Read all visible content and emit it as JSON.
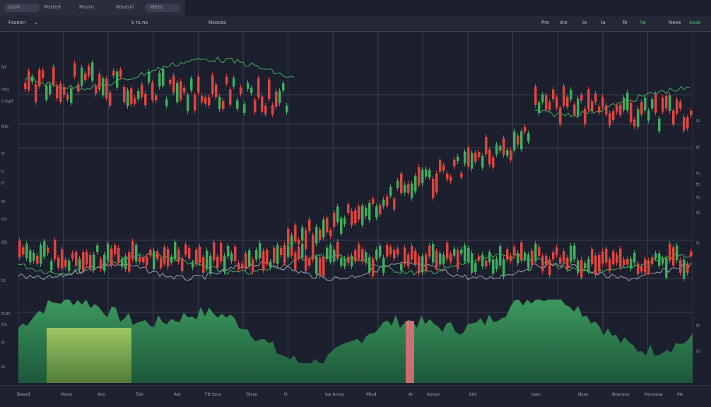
{
  "topbar": {
    "tabs": [
      "Lash",
      "Mstted",
      "Msato",
      "Wostoil",
      "Ideto"
    ]
  },
  "header": {
    "symbol": "Fssoon",
    "indicator": "k rs.ns",
    "title": "Nsooss",
    "controls": [
      "Pro",
      "ste",
      "Io",
      "Ia",
      "To",
      "Ae",
      "Nese"
    ],
    "status": "Aoss"
  },
  "left_axis": [
    "Nt",
    "Ftts",
    "Caspt",
    "Nts",
    "tt",
    "h",
    "tt",
    "ts",
    "tts",
    "Ett",
    "ts",
    "ttstt",
    "tts",
    "tt",
    "ts"
  ],
  "right_axis": [
    "ts",
    "tt",
    "ts",
    "tt",
    "ts",
    "ts",
    "tt",
    "tt",
    "ts"
  ],
  "footer": [
    "Besed",
    "Moon",
    "Aso",
    "Tsin",
    "Ast",
    "Ftt tocs",
    "Olsso",
    "tt",
    "tss Arcso",
    "Mtsd",
    "Ar",
    "Aonso",
    "tstt",
    "taso",
    "Nsos",
    "Nosreos",
    "Nonssoa",
    "Ms"
  ],
  "colors": {
    "up": "#e0453e",
    "down": "#3fae5c",
    "grid": "#3b3f50",
    "area_green": "#3e9f5f",
    "area_lime": "#c8e36a"
  }
}
